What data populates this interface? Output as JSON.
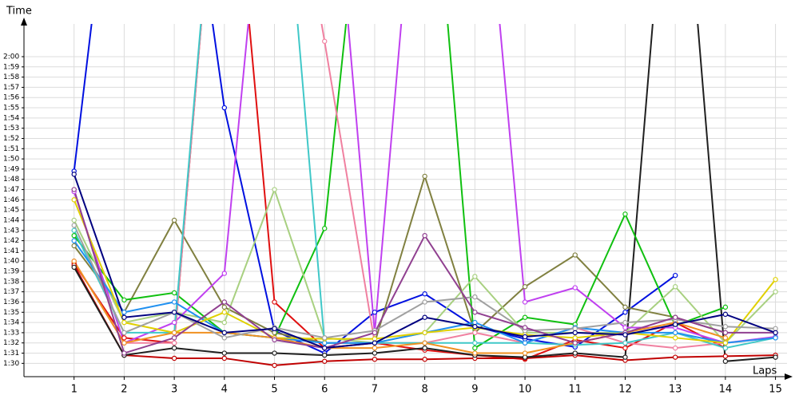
{
  "chart_data": {
    "type": "line",
    "y_label": "Time",
    "x_label": "Laps",
    "x": [
      1,
      2,
      3,
      4,
      5,
      6,
      7,
      8,
      9,
      10,
      11,
      12,
      13,
      14,
      15
    ],
    "xlim": [
      0,
      15.23
    ],
    "xticks": [
      1,
      2,
      3,
      4,
      5,
      6,
      7,
      8,
      9,
      10,
      11,
      12,
      13,
      14,
      15
    ],
    "ylim": [
      88.7,
      123.2
    ],
    "yticks": [
      {
        "value": 90,
        "label": "1:30"
      },
      {
        "value": 91,
        "label": "1:31"
      },
      {
        "value": 92,
        "label": "1:32"
      },
      {
        "value": 93,
        "label": "1:33"
      },
      {
        "value": 94,
        "label": "1:34"
      },
      {
        "value": 95,
        "label": "1:35"
      },
      {
        "value": 96,
        "label": "1:36"
      },
      {
        "value": 97,
        "label": "1:37"
      },
      {
        "value": 98,
        "label": "1:38"
      },
      {
        "value": 99,
        "label": "1:39"
      },
      {
        "value": 100,
        "label": "1:40"
      },
      {
        "value": 101,
        "label": "1:41"
      },
      {
        "value": 102,
        "label": "1:42"
      },
      {
        "value": 103,
        "label": "1:43"
      },
      {
        "value": 104,
        "label": "1:44"
      },
      {
        "value": 105,
        "label": "1:45"
      },
      {
        "value": 106,
        "label": "1:46"
      },
      {
        "value": 107,
        "label": "1:47"
      },
      {
        "value": 108,
        "label": "1:48"
      },
      {
        "value": 109,
        "label": "1:49"
      },
      {
        "value": 110,
        "label": "1:50"
      },
      {
        "value": 111,
        "label": "1:51"
      },
      {
        "value": 112,
        "label": "1:52"
      },
      {
        "value": 113,
        "label": "1:53"
      },
      {
        "value": 114,
        "label": "1:54"
      },
      {
        "value": 115,
        "label": "1:55"
      },
      {
        "value": 116,
        "label": "1:56"
      },
      {
        "value": 117,
        "label": "1:57"
      },
      {
        "value": 118,
        "label": "1:58"
      },
      {
        "value": 119,
        "label": "1:59"
      },
      {
        "value": 120,
        "label": "2:00"
      }
    ],
    "grid": true,
    "series": [
      {
        "color": "#0010e0",
        "values": [
          108.8,
          150,
          150,
          115,
          93.2,
          91,
          95,
          96.8,
          93.6,
          92.4,
          91.6,
          95,
          98.6,
          null,
          null
        ]
      },
      {
        "color": "#e01010",
        "values": [
          99.8,
          92.5,
          92,
          150,
          96,
          91.5,
          92,
          91.3,
          90.8,
          90.4,
          92.3,
          91.5,
          94,
          91.5,
          null
        ]
      },
      {
        "color": "#c00000",
        "values": [
          99.6,
          90.8,
          90.5,
          90.5,
          89.8,
          90.2,
          90.4,
          90.4,
          90.5,
          90.5,
          90.8,
          90.3,
          90.6,
          90.7,
          90.8
        ]
      },
      {
        "color": "#202020",
        "values": [
          99.4,
          90.8,
          91.5,
          91,
          91,
          90.8,
          91,
          91.5,
          90.8,
          90.6,
          91,
          90.6,
          150,
          90.2,
          90.6
        ]
      },
      {
        "color": "#808040",
        "values": [
          101.5,
          95,
          104,
          95.5,
          93,
          92,
          92,
          108.3,
          93,
          97.5,
          100.6,
          95.5,
          94.5,
          93,
          null
        ]
      },
      {
        "color": "#10c010",
        "values": [
          102.5,
          96.2,
          96.9,
          93,
          92.5,
          103.2,
          150,
          150,
          91.5,
          94.5,
          93.8,
          104.6,
          93.7,
          95.5,
          null
        ]
      },
      {
        "color": "#a8d080",
        "values": [
          104,
          94,
          95,
          94,
          107,
          92.5,
          92,
          93,
          98.5,
          93,
          93,
          93,
          97.5,
          92,
          97
        ]
      },
      {
        "color": "#c040f0",
        "values": [
          106.8,
          92,
          94,
          98.8,
          150,
          150,
          93,
          150,
          150,
          96,
          97.4,
          93.5,
          93.5,
          92,
          92.6
        ]
      },
      {
        "color": "#f080a0",
        "values": [
          100,
          92,
          92,
          150,
          150,
          121.5,
          92,
          92,
          93,
          92,
          93.5,
          92,
          91.5,
          92,
          92.5
        ]
      },
      {
        "color": "#40c8c8",
        "values": [
          103,
          93,
          93,
          150,
          150,
          92,
          92,
          92,
          92,
          92,
          91.8,
          92,
          93,
          91.5,
          92.5
        ]
      },
      {
        "color": "#2090f0",
        "values": [
          102,
          95,
          96,
          93,
          92.5,
          92,
          92,
          93,
          94,
          92,
          93.5,
          93,
          93,
          92,
          92.5
        ]
      },
      {
        "color": "#e0d000",
        "values": [
          106,
          94,
          93,
          95,
          92.5,
          92.4,
          92.4,
          93,
          93.5,
          92.8,
          92.5,
          93,
          92.5,
          92,
          98.2
        ]
      },
      {
        "color": "#f09020",
        "values": [
          100,
          92,
          93,
          93,
          92.5,
          91.5,
          91.5,
          92,
          91,
          91,
          92,
          93,
          94,
          92.5,
          null
        ]
      },
      {
        "color": "#a0a0a0",
        "values": [
          103.5,
          93,
          95,
          92.5,
          93.5,
          92.5,
          93.2,
          96,
          96.5,
          93.2,
          93.4,
          94,
          94.3,
          93.6,
          93.4
        ]
      },
      {
        "color": "#904090",
        "values": [
          107,
          91,
          92.5,
          96,
          92.3,
          91.5,
          93,
          102.5,
          95,
          93.5,
          92,
          93,
          94.5,
          93,
          93
        ]
      },
      {
        "color": "#000080",
        "values": [
          108.5,
          94.5,
          95,
          93,
          93.4,
          91.5,
          92,
          94.5,
          93.6,
          92.6,
          93,
          92.8,
          93.8,
          94.8,
          93
        ]
      }
    ]
  }
}
